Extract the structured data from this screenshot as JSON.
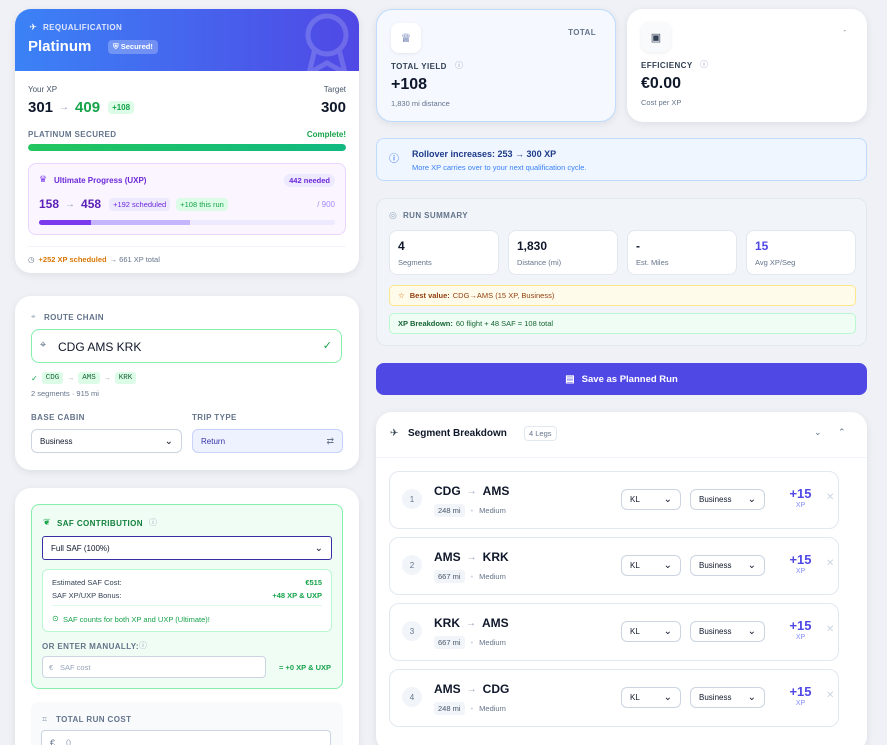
{
  "requal": {
    "label": "REQUALIFICATION",
    "tier": "Platinum",
    "secured": "Secured!",
    "your_xp_label": "Your XP",
    "xp_from": "301",
    "xp_to": "409",
    "xp_delta": "+108",
    "target_label": "Target",
    "target": "300",
    "secured_label": "PLATINUM SECURED",
    "complete": "Complete!",
    "progress": 1.0,
    "uxp": {
      "title": "Ultimate Progress (UXP)",
      "needed": "442 needed",
      "from": "158",
      "to": "458",
      "scheduled": "+192 scheduled",
      "this_run": "+108 this run",
      "of": "/ 900",
      "progress_base": 0.176,
      "progress_total": 0.509
    },
    "footer_hl": "+252 XP scheduled",
    "footer_rest": "→ 661 XP total"
  },
  "route": {
    "label": "ROUTE CHAIN",
    "value": "CDG AMS KRK",
    "chips": [
      "CDG",
      "AMS",
      "KRK"
    ],
    "summary": "2 segments · 915 mi",
    "base_cabin_label": "BASE CABIN",
    "base_cabin": "Business",
    "trip_type_label": "TRIP TYPE",
    "trip_type": "Return"
  },
  "saf": {
    "label": "SAF CONTRIBUTION",
    "selected": "Full SAF (100%)",
    "est_label": "Estimated SAF Cost:",
    "est_value": "€515",
    "bonus_label": "SAF XP/UXP Bonus:",
    "bonus_value": "+48 XP & UXP",
    "note": "SAF counts for both XP and UXP (Ultimate)!",
    "manual_label": "OR ENTER MANUALLY:",
    "currency": "€",
    "manual_placeholder": "SAF cost",
    "manual_result": "= +0 XP & UXP"
  },
  "run_cost": {
    "label": "TOTAL RUN COST",
    "currency": "€",
    "value": "0"
  },
  "total": {
    "badge": "TOTAL",
    "label": "TOTAL YIELD",
    "value": "+108",
    "sub": "1,830 mi distance"
  },
  "efficiency": {
    "badge": "-",
    "label": "EFFICIENCY",
    "value": "€0.00",
    "sub": "Cost per XP"
  },
  "rollover": {
    "title": "Rollover increases: 253 → 300 XP",
    "sub": "More XP carries over to your next qualification cycle."
  },
  "summary": {
    "label": "RUN SUMMARY",
    "stats": [
      {
        "value": "4",
        "label": "Segments"
      },
      {
        "value": "1,830",
        "label": "Distance (mi)"
      },
      {
        "value": "-",
        "label": "Est. Miles"
      },
      {
        "value": "15",
        "label": "Avg XP/Seg"
      }
    ],
    "best_label": "Best value:",
    "best_value": "CDG→AMS (15 XP, Business)",
    "breakdown_label": "XP Breakdown:",
    "breakdown_value": "60 flight + 48 SAF = 108 total"
  },
  "save_button": "Save as Planned Run",
  "segments_title": "Segment Breakdown",
  "segments_badge": "4 Legs",
  "segments": [
    {
      "num": "1",
      "from": "CDG",
      "to": "AMS",
      "miles": "248 mi",
      "dist": "Medium",
      "airline": "KL",
      "cabin": "Business",
      "xp": "+15",
      "xp_unit": "XP"
    },
    {
      "num": "2",
      "from": "AMS",
      "to": "KRK",
      "miles": "667 mi",
      "dist": "Medium",
      "airline": "KL",
      "cabin": "Business",
      "xp": "+15",
      "xp_unit": "XP"
    },
    {
      "num": "3",
      "from": "KRK",
      "to": "AMS",
      "miles": "667 mi",
      "dist": "Medium",
      "airline": "KL",
      "cabin": "Business",
      "xp": "+15",
      "xp_unit": "XP"
    },
    {
      "num": "4",
      "from": "AMS",
      "to": "CDG",
      "miles": "248 mi",
      "dist": "Medium",
      "airline": "KL",
      "cabin": "Business",
      "xp": "+15",
      "xp_unit": "XP"
    }
  ],
  "colors": {
    "primary": "#5048e5",
    "green": "#16a34a",
    "purple": "#7c3aed",
    "orange": "#d97706"
  }
}
